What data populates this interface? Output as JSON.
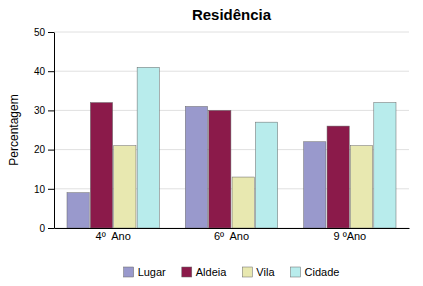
{
  "chart_data": {
    "type": "bar",
    "title": "Residência",
    "ylabel": "Percentagem",
    "categories": [
      "4º  Ano",
      "6º  Ano",
      "9 ºAno"
    ],
    "series": [
      {
        "name": "Lugar",
        "color": "#9999cc",
        "values": [
          9,
          31,
          22
        ]
      },
      {
        "name": "Aldeia",
        "color": "#8B1A4A",
        "values": [
          32,
          30,
          26
        ]
      },
      {
        "name": "Vila",
        "color": "#e8e8b0",
        "values": [
          21,
          13,
          21
        ]
      },
      {
        "name": "Cidade",
        "color": "#b8ecec",
        "values": [
          41,
          27,
          32
        ]
      }
    ],
    "ylim": [
      0,
      50
    ],
    "yticks": [
      0,
      10,
      20,
      30,
      40,
      50
    ],
    "grid": true,
    "legend": "bottom"
  }
}
